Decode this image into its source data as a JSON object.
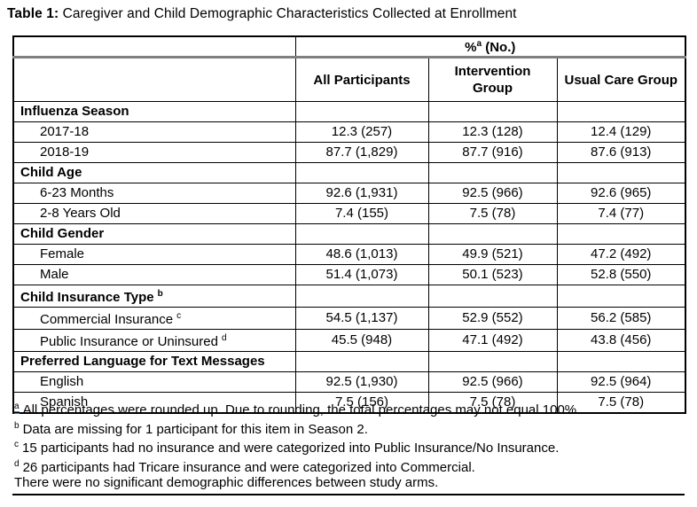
{
  "title": {
    "prefix": "Table 1:",
    "caption": " Caregiver and Child Demographic Characteristics Collected at Enrollment"
  },
  "table": {
    "span_header": {
      "pre": "%",
      "sup": "a",
      "post": " (No.)"
    },
    "columns": [
      "All Participants",
      "Intervention Group",
      "Usual Care Group"
    ],
    "rows": [
      {
        "type": "section",
        "label": "Influenza Season"
      },
      {
        "type": "data",
        "label": "2017-18",
        "values": [
          "12.3 (257)",
          "12.3 (128)",
          "12.4 (129)"
        ]
      },
      {
        "type": "data",
        "label": "2018-19",
        "values": [
          "87.7 (1,829)",
          "87.7 (916)",
          "87.6 (913)"
        ]
      },
      {
        "type": "section",
        "label": "Child Age"
      },
      {
        "type": "data",
        "label": "6-23 Months",
        "values": [
          "92.6 (1,931)",
          "92.5 (966)",
          "92.6 (965)"
        ]
      },
      {
        "type": "data",
        "label": "2-8 Years Old",
        "values": [
          "7.4 (155)",
          "7.5 (78)",
          "7.4 (77)"
        ]
      },
      {
        "type": "section",
        "label": "Child Gender"
      },
      {
        "type": "data",
        "label": "Female",
        "values": [
          "48.6 (1,013)",
          "49.9 (521)",
          "47.2 (492)"
        ]
      },
      {
        "type": "data",
        "label": "Male",
        "values": [
          "51.4 (1,073)",
          "50.1 (523)",
          "52.8 (550)"
        ]
      },
      {
        "type": "section",
        "label": "Child Insurance Type",
        "sup": "b"
      },
      {
        "type": "data",
        "label": "Commercial Insurance",
        "sup": "c",
        "values": [
          "54.5 (1,137)",
          "52.9 (552)",
          "56.2 (585)"
        ]
      },
      {
        "type": "data",
        "label": "Public Insurance or Uninsured",
        "sup": "d",
        "values": [
          "45.5 (948)",
          "47.1 (492)",
          "43.8 (456)"
        ]
      },
      {
        "type": "section",
        "label": "Preferred Language for Text Messages"
      },
      {
        "type": "data",
        "label": "English",
        "values": [
          "92.5 (1,930)",
          "92.5 (966)",
          "92.5 (964)"
        ]
      },
      {
        "type": "data",
        "label": "Spanish",
        "values": [
          "7.5 (156)",
          "7.5 (78)",
          "7.5 (78)"
        ]
      }
    ]
  },
  "footnotes": [
    {
      "sup": "a",
      "grammar_mark": true,
      "text": "All percentages were rounded up. Due to rounding, the total percentages may not equal 100%."
    },
    {
      "sup": "b",
      "text": "Data are missing for 1 participant for this item in Season 2."
    },
    {
      "sup": "c",
      "text": "15 participants had no insurance and were categorized into Public Insurance/No Insurance."
    },
    {
      "sup": "d",
      "text": "26 participants had Tricare insurance and were categorized into Commercial."
    },
    {
      "text": "There were no significant demographic differences between study arms."
    }
  ],
  "colors": {
    "border": "#000000",
    "thick_divider": "#7f7f7f",
    "grammar_mark_blue": "#2f7bd8",
    "background": "#ffffff",
    "text": "#000000"
  }
}
